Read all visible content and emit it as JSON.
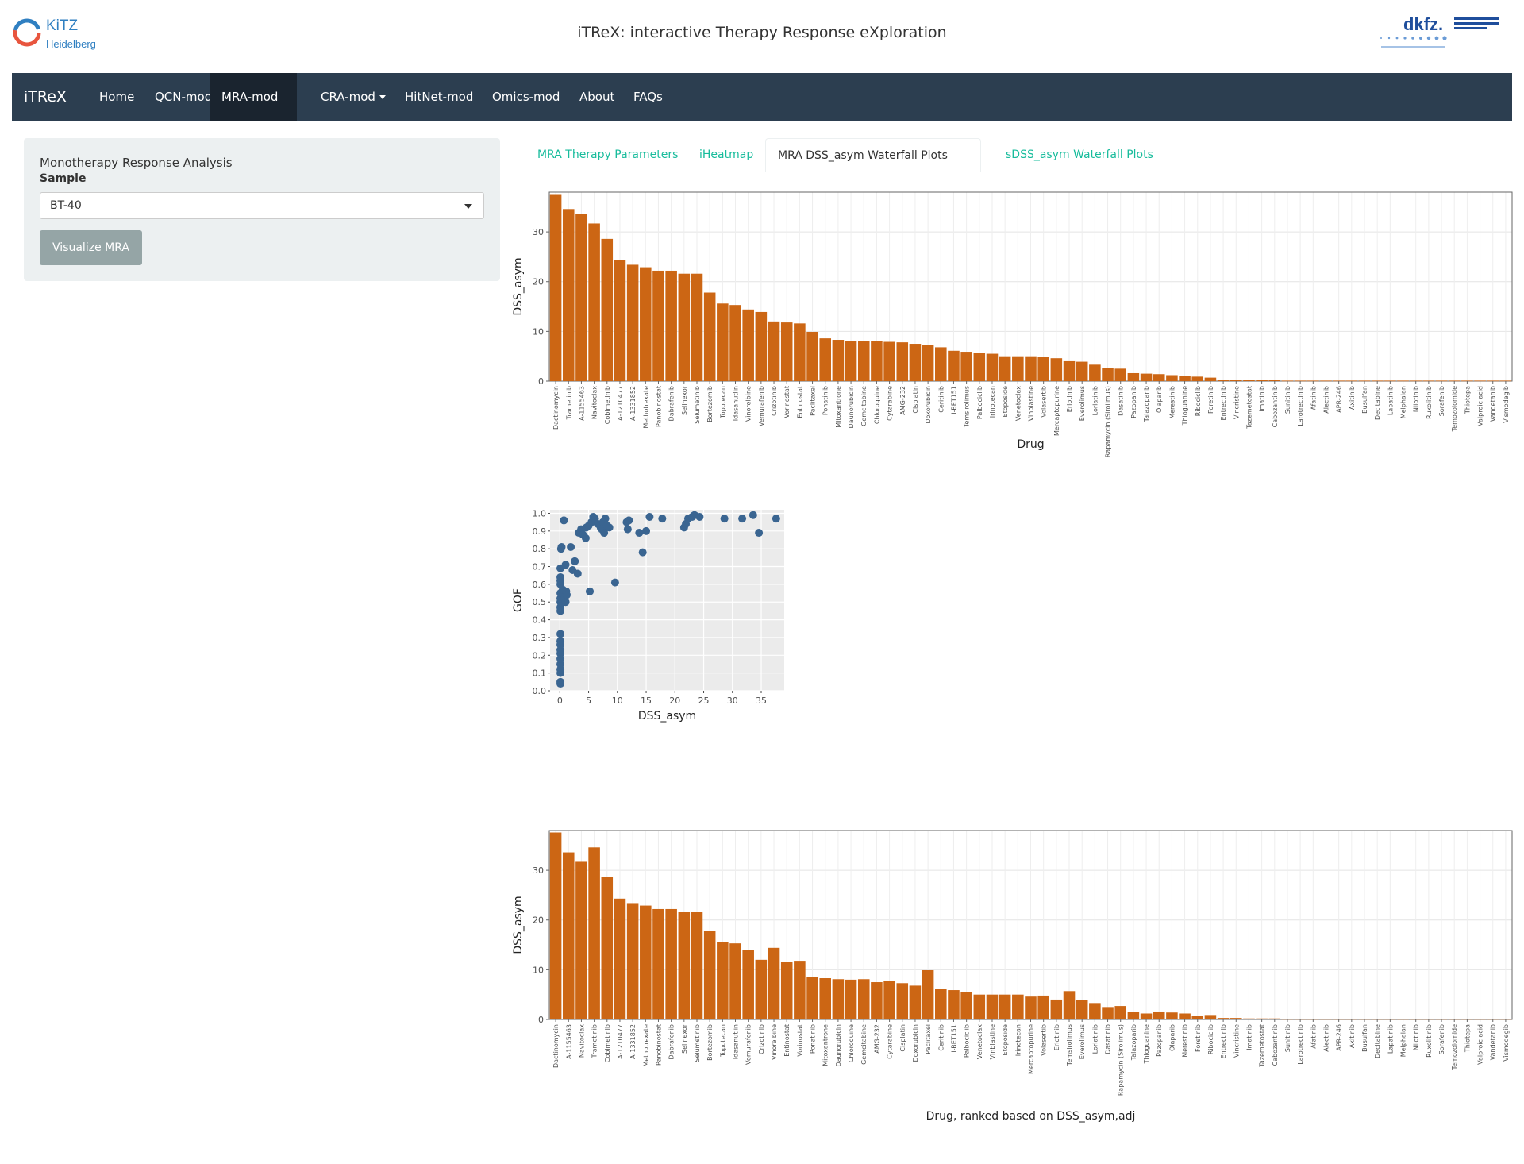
{
  "header": {
    "title": "iTReX: interactive Therapy Response eXploration",
    "logo_left_line1": "KiTZ",
    "logo_left_line2": "Heidelberg",
    "logo_right_text": "dkfz."
  },
  "nav": {
    "brand": "iTReX",
    "items": [
      {
        "label": "Home"
      },
      {
        "label": "QCN-mod"
      },
      {
        "label": "MRA-mod"
      },
      {
        "label": "CRA-mod"
      },
      {
        "label": "HitNet-mod"
      },
      {
        "label": "Omics-mod"
      },
      {
        "label": "About"
      },
      {
        "label": "FAQs"
      }
    ]
  },
  "sidebar": {
    "title": "Monotherapy Response Analysis",
    "sample_label": "Sample",
    "sample_value": "BT-40",
    "button_label": "Visualize MRA"
  },
  "tabs": [
    {
      "label": "MRA Therapy Parameters"
    },
    {
      "label": "iHeatmap"
    },
    {
      "label": "MRA DSS_asym Waterfall Plots"
    },
    {
      "label": "sDSS_asym Waterfall Plots"
    }
  ],
  "colors": {
    "bar": "#cc6614",
    "point": "#3a6591",
    "panel": "#ebebeb",
    "navbar": "#2c3e50",
    "accent": "#18bc9c"
  },
  "chart_data": [
    {
      "type": "bar",
      "xlabel": "Drug",
      "ylabel": "DSS_asym",
      "ylim": [
        0,
        38
      ],
      "yticks": [
        0,
        10,
        20,
        30
      ],
      "categories": [
        "Dactinomycin",
        "Trametinib",
        "A-1155463",
        "Navitoclax",
        "Cobimetinib",
        "A-1210477",
        "A-1331852",
        "Methotrexate",
        "Panobinostat",
        "Dabrafenib",
        "Selinexor",
        "Selumetinib",
        "Bortezomib",
        "Topotecan",
        "Idasanutlin",
        "Vinorelbine",
        "Vemurafenib",
        "Crizotinib",
        "Vorinostat",
        "Entinostat",
        "Paclitaxel",
        "Ponatinib",
        "Mitoxantrone",
        "Daunorubicin",
        "Gemcitabine",
        "Chloroquine",
        "Cytarabine",
        "AMG-232",
        "Cisplatin",
        "Doxorubicin",
        "Ceritinib",
        "I-BET151",
        "Temsirolimus",
        "Palbociclib",
        "Irinotecan",
        "Etoposide",
        "Venetoclax",
        "Vinblastine",
        "Volasertib",
        "Mercaptopurine",
        "Erlotinib",
        "Everolimus",
        "Lorlatinib",
        "Rapamycin (Sirolimus)",
        "Dasatinib",
        "Pazopanib",
        "Talazoparib",
        "Olaparib",
        "Merestinib",
        "Thioguanine",
        "Ribociclib",
        "Foretinib",
        "Entrectinib",
        "Vincristine",
        "Tazemetostat",
        "Imatinib",
        "Cabozantinib",
        "Sunitinib",
        "Larotrectinib",
        "Afatinib",
        "Alectinib",
        "APR-246",
        "Axitinib",
        "Busulfan",
        "Decitabine",
        "Lapatinib",
        "Melphalan",
        "Nilotinib",
        "Ruxolitinib",
        "Sorafenib",
        "Temozolomide",
        "Thiotepa",
        "Valproic acid",
        "Vandetanib",
        "Vismodegib"
      ],
      "values": [
        37.6,
        34.6,
        33.6,
        31.7,
        28.6,
        24.3,
        23.4,
        22.9,
        22.2,
        22.2,
        21.6,
        21.6,
        17.8,
        15.6,
        15.3,
        14.4,
        13.9,
        12.0,
        11.8,
        11.6,
        9.9,
        8.6,
        8.3,
        8.1,
        8.1,
        8.0,
        7.9,
        7.8,
        7.5,
        7.3,
        6.8,
        6.1,
        5.9,
        5.7,
        5.5,
        5.0,
        5.0,
        5.0,
        4.8,
        4.6,
        4.0,
        3.9,
        3.3,
        2.7,
        2.5,
        1.6,
        1.5,
        1.4,
        1.2,
        1.0,
        0.9,
        0.7,
        0.3,
        0.3,
        0.2,
        0.2,
        0.2,
        0.1,
        0.1,
        0.1,
        0.1,
        0.1,
        0.1,
        0.1,
        0.1,
        0.1,
        0.1,
        0.1,
        0.1,
        0.1,
        0.1,
        0.1,
        0.1,
        0.1,
        0.1
      ]
    },
    {
      "type": "scatter",
      "xlabel": "DSS_asym",
      "ylabel": "GOF",
      "xlim": [
        -1.7,
        39
      ],
      "ylim": [
        0,
        1.02
      ],
      "xticks": [
        0,
        5,
        10,
        15,
        20,
        25,
        30,
        35
      ],
      "yticks": [
        0.0,
        0.1,
        0.2,
        0.3,
        0.4,
        0.5,
        0.6,
        0.7,
        0.8,
        0.9,
        1.0
      ],
      "points": [
        [
          0.1,
          0.04
        ],
        [
          0.1,
          0.05
        ],
        [
          0.1,
          0.1
        ],
        [
          0.1,
          0.12
        ],
        [
          0.1,
          0.15
        ],
        [
          0.1,
          0.18
        ],
        [
          0.1,
          0.21
        ],
        [
          0.1,
          0.23
        ],
        [
          0.1,
          0.26
        ],
        [
          0.1,
          0.28
        ],
        [
          0.1,
          0.32
        ],
        [
          0.1,
          0.45
        ],
        [
          0.1,
          0.47
        ],
        [
          0.1,
          0.5
        ],
        [
          0.1,
          0.52
        ],
        [
          0.1,
          0.55
        ],
        [
          0.1,
          0.6
        ],
        [
          0.1,
          0.62
        ],
        [
          0.1,
          0.64
        ],
        [
          0.1,
          0.69
        ],
        [
          0.2,
          0.8
        ],
        [
          0.3,
          0.81
        ],
        [
          0.5,
          0.57
        ],
        [
          0.7,
          0.96
        ],
        [
          0.8,
          0.52
        ],
        [
          1.0,
          0.5
        ],
        [
          1.1,
          0.56
        ],
        [
          1.0,
          0.71
        ],
        [
          1.2,
          0.54
        ],
        [
          1.9,
          0.81
        ],
        [
          2.2,
          0.68
        ],
        [
          2.6,
          0.73
        ],
        [
          3.1,
          0.66
        ],
        [
          3.3,
          0.89
        ],
        [
          3.7,
          0.91
        ],
        [
          4.0,
          0.88
        ],
        [
          4.5,
          0.86
        ],
        [
          4.6,
          0.92
        ],
        [
          5.0,
          0.93
        ],
        [
          5.2,
          0.56
        ],
        [
          5.5,
          0.95
        ],
        [
          5.8,
          0.98
        ],
        [
          6.1,
          0.97
        ],
        [
          6.6,
          0.94
        ],
        [
          7.1,
          0.92
        ],
        [
          7.3,
          0.91
        ],
        [
          7.5,
          0.95
        ],
        [
          7.7,
          0.89
        ],
        [
          7.9,
          0.97
        ],
        [
          8.2,
          0.93
        ],
        [
          8.6,
          0.92
        ],
        [
          9.6,
          0.61
        ],
        [
          11.6,
          0.95
        ],
        [
          11.8,
          0.91
        ],
        [
          12.0,
          0.96
        ],
        [
          13.8,
          0.89
        ],
        [
          14.4,
          0.78
        ],
        [
          15.0,
          0.9
        ],
        [
          15.6,
          0.98
        ],
        [
          17.8,
          0.97
        ],
        [
          21.6,
          0.92
        ],
        [
          21.9,
          0.94
        ],
        [
          22.3,
          0.97
        ],
        [
          23.0,
          0.98
        ],
        [
          23.4,
          0.99
        ],
        [
          24.3,
          0.98
        ],
        [
          28.6,
          0.97
        ],
        [
          31.7,
          0.97
        ],
        [
          33.6,
          0.99
        ],
        [
          34.6,
          0.89
        ],
        [
          37.6,
          0.97
        ]
      ]
    },
    {
      "type": "bar",
      "xlabel": "Drug, ranked based on DSS_asym,adj",
      "ylabel": "DSS_asym",
      "ylim": [
        0,
        38
      ],
      "yticks": [
        0,
        10,
        20,
        30
      ],
      "categories": [
        "Dactinomycin",
        "A-1155463",
        "Navitoclax",
        "Trametinib",
        "Cobimetinib",
        "A-1210477",
        "A-1331852",
        "Methotrexate",
        "Panobinostat",
        "Dabrafenib",
        "Selinexor",
        "Selumetinib",
        "Bortezomib",
        "Topotecan",
        "Idasanutlin",
        "Vemurafenib",
        "Crizotinib",
        "Vinorelbine",
        "Entinostat",
        "Vorinostat",
        "Ponatinib",
        "Mitoxantrone",
        "Daunorubicin",
        "Chloroquine",
        "Gemcitabine",
        "AMG-232",
        "Cytarabine",
        "Cisplatin",
        "Doxorubicin",
        "Paclitaxel",
        "Ceritinib",
        "I-BET151",
        "Palbociclib",
        "Venetoclax",
        "Vinblastine",
        "Etoposide",
        "Irinotecan",
        "Mercaptopurine",
        "Volasertib",
        "Erlotinib",
        "Temsirolimus",
        "Everolimus",
        "Lorlatinib",
        "Dasatinib",
        "Rapamycin (Sirolimus)",
        "Talazoparib",
        "Thioguanine",
        "Pazopanib",
        "Olaparib",
        "Merestinib",
        "Foretinib",
        "Ribociclib",
        "Entrectinib",
        "Vincristine",
        "Imatinib",
        "Tazemetostat",
        "Cabozantinib",
        "Sunitinib",
        "Larotrectinib",
        "Afatinib",
        "Alectinib",
        "APR-246",
        "Axitinib",
        "Busulfan",
        "Decitabine",
        "Lapatinib",
        "Melphalan",
        "Nilotinib",
        "Ruxolitinib",
        "Sorafenib",
        "Temozolomide",
        "Thiotepa",
        "Valproic acid",
        "Vandetanib",
        "Vismodegib"
      ],
      "values": [
        37.6,
        33.6,
        31.7,
        34.6,
        28.6,
        24.3,
        23.4,
        22.9,
        22.2,
        22.2,
        21.6,
        21.6,
        17.8,
        15.6,
        15.3,
        13.9,
        12.0,
        14.4,
        11.6,
        11.8,
        8.6,
        8.3,
        8.1,
        8.0,
        8.1,
        7.5,
        7.8,
        7.3,
        6.8,
        9.9,
        6.1,
        5.9,
        5.5,
        5.0,
        5.0,
        5.0,
        5.0,
        4.6,
        4.8,
        4.0,
        5.7,
        3.9,
        3.3,
        2.5,
        2.7,
        1.5,
        1.2,
        1.6,
        1.4,
        1.2,
        0.7,
        0.9,
        0.3,
        0.3,
        0.2,
        0.2,
        0.2,
        0.1,
        0.1,
        0.1,
        0.1,
        0.1,
        0.1,
        0.1,
        0.1,
        0.1,
        0.1,
        0.1,
        0.1,
        0.1,
        0.1,
        0.1,
        0.1,
        0.1,
        0.1
      ]
    }
  ]
}
